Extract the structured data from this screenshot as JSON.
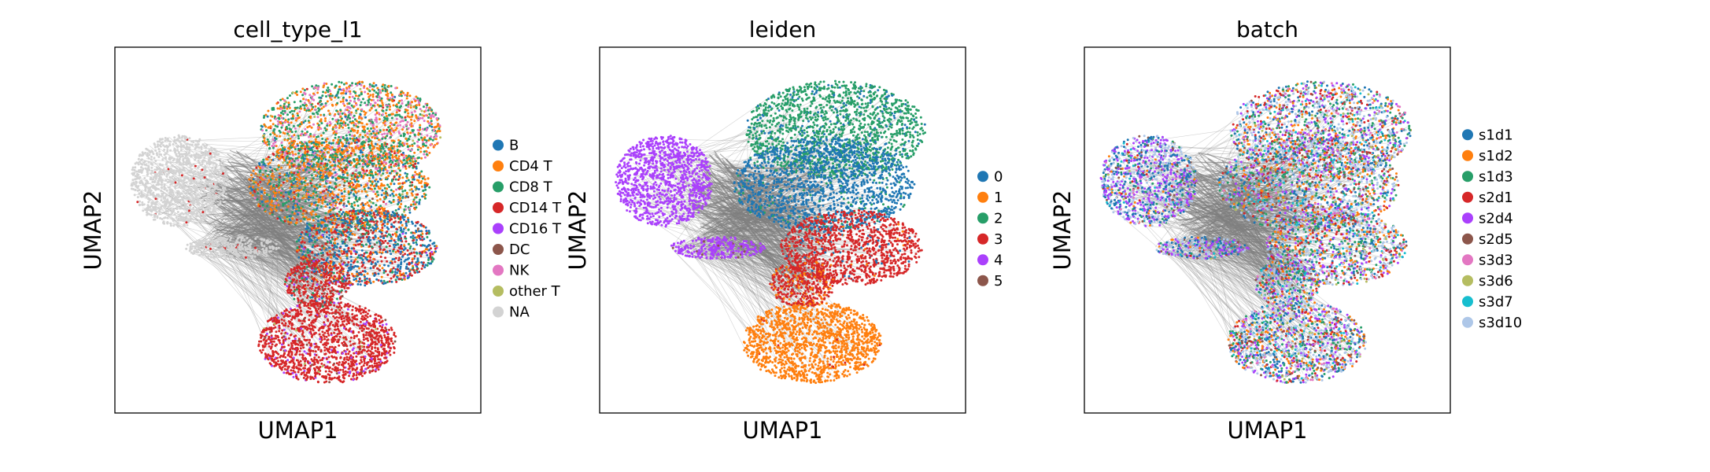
{
  "chart_data": [
    {
      "type": "scatter",
      "title": "cell_type_l1",
      "xlabel": "UMAP1",
      "ylabel": "UMAP2",
      "grid": false,
      "legend": "right",
      "series": [
        {
          "name": "B",
          "color": "#1f77b4"
        },
        {
          "name": "CD4 T",
          "color": "#ff7f0e"
        },
        {
          "name": "CD8 T",
          "color": "#279e68"
        },
        {
          "name": "CD14 T",
          "color": "#d62728"
        },
        {
          "name": "CD16 T",
          "color": "#aa40fc"
        },
        {
          "name": "DC",
          "color": "#8c564b"
        },
        {
          "name": "NK",
          "color": "#e377c2"
        },
        {
          "name": "other T",
          "color": "#b5bd61"
        },
        {
          "name": "NA",
          "color": "#d3d3d3"
        }
      ]
    },
    {
      "type": "scatter",
      "title": "leiden",
      "xlabel": "UMAP1",
      "ylabel": "UMAP2",
      "grid": false,
      "legend": "right",
      "series": [
        {
          "name": "0",
          "color": "#1f77b4"
        },
        {
          "name": "1",
          "color": "#ff7f0e"
        },
        {
          "name": "2",
          "color": "#279e68"
        },
        {
          "name": "3",
          "color": "#d62728"
        },
        {
          "name": "4",
          "color": "#aa40fc"
        },
        {
          "name": "5",
          "color": "#8c564b"
        }
      ]
    },
    {
      "type": "scatter",
      "title": "batch",
      "xlabel": "UMAP1",
      "ylabel": "UMAP2",
      "grid": false,
      "legend": "right",
      "series": [
        {
          "name": "s1d1",
          "color": "#1f77b4"
        },
        {
          "name": "s1d2",
          "color": "#ff7f0e"
        },
        {
          "name": "s1d3",
          "color": "#279e68"
        },
        {
          "name": "s2d1",
          "color": "#d62728"
        },
        {
          "name": "s2d4",
          "color": "#aa40fc"
        },
        {
          "name": "s2d5",
          "color": "#8c564b"
        },
        {
          "name": "s3d3",
          "color": "#e377c2"
        },
        {
          "name": "s3d6",
          "color": "#b5bd61"
        },
        {
          "name": "s3d7",
          "color": "#17becf"
        },
        {
          "name": "s3d10",
          "color": "#aec7e8"
        }
      ]
    }
  ]
}
